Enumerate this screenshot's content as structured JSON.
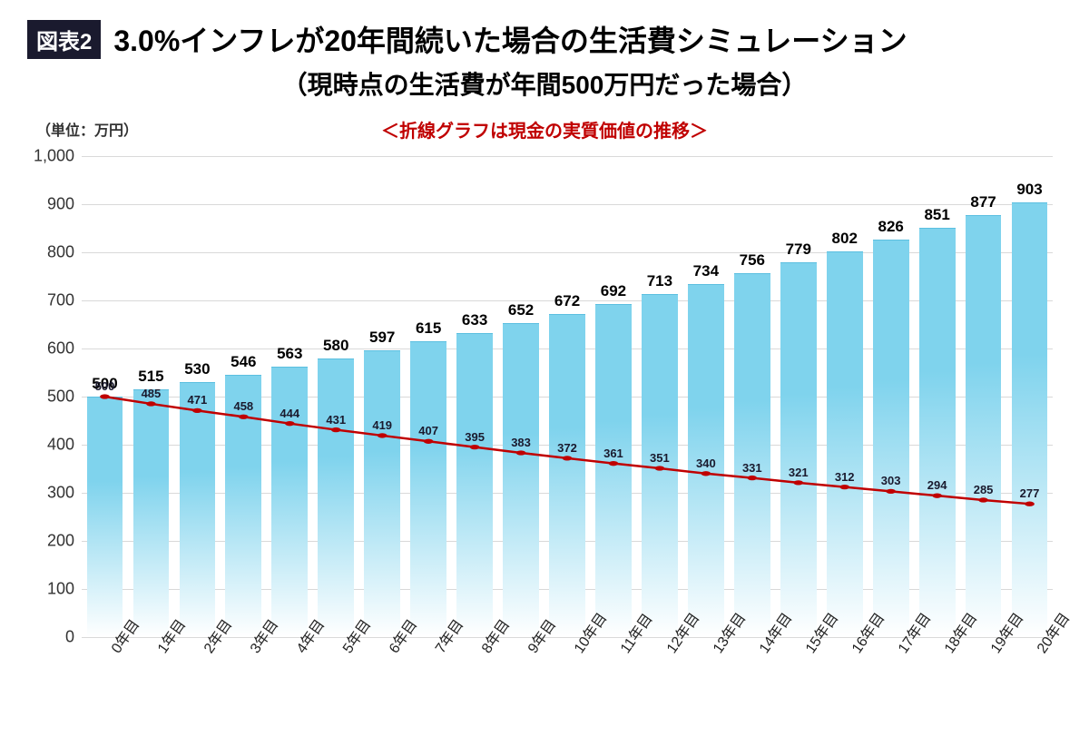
{
  "header": {
    "badge": "図表2",
    "title": "3.0%インフレが20年間続いた場合の生活費シミュレーション",
    "subtitle": "（現時点の生活費が年間500万円だった場合）",
    "unit_label": "（単位：万円）",
    "line_note": "＜折線グラフは現金の実質価値の推移＞",
    "line_note_color": "#c00000"
  },
  "chart": {
    "type": "bar+line",
    "background_color": "#ffffff",
    "grid_color": "#d9d9d9",
    "axis_color": "#888888",
    "y_axis": {
      "min": 0,
      "max": 1000,
      "tick_step": 100,
      "tick_labels": [
        "0",
        "100",
        "200",
        "300",
        "400",
        "500",
        "600",
        "700",
        "800",
        "900",
        "1,000"
      ],
      "tick_fontsize": 18,
      "tick_color": "#333333"
    },
    "categories": [
      "0年目",
      "1年目",
      "2年目",
      "3年目",
      "4年目",
      "5年目",
      "6年目",
      "7年目",
      "8年目",
      "9年目",
      "10年目",
      "11年目",
      "12年目",
      "13年目",
      "14年目",
      "15年目",
      "16年目",
      "17年目",
      "18年目",
      "19年目",
      "20年目"
    ],
    "x_label_fontsize": 16,
    "x_label_rotation_deg": -55,
    "bars": {
      "values": [
        500,
        515,
        530,
        546,
        563,
        580,
        597,
        615,
        633,
        652,
        672,
        692,
        713,
        734,
        756,
        779,
        802,
        826,
        851,
        877,
        903
      ],
      "label_fontsize": 17,
      "label_color": "#000000",
      "bar_width_frac": 0.78,
      "fill_top": "#7fd3ed",
      "fill_bottom": "#ffffff",
      "border_color": "#5bbfe0"
    },
    "line": {
      "values": [
        500,
        485,
        471,
        458,
        444,
        431,
        419,
        407,
        395,
        383,
        372,
        361,
        351,
        340,
        331,
        321,
        312,
        303,
        294,
        285,
        277
      ],
      "color": "#c00000",
      "width": 2.5,
      "marker_radius": 3.5,
      "marker_fill": "#c00000",
      "value_label_fontsize": 13,
      "value_label_color": "#1a1a2e"
    }
  }
}
